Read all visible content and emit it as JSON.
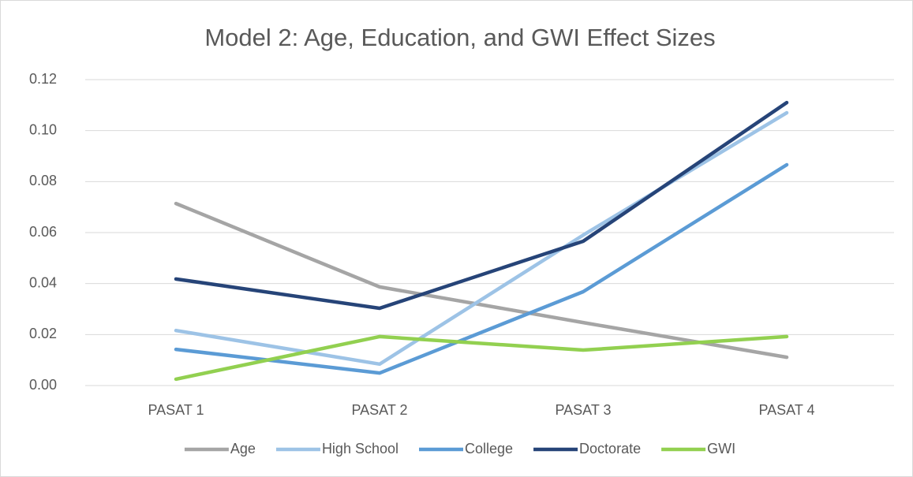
{
  "chart_data": {
    "type": "line",
    "title": "Model 2: Age, Education, and GWI Effect Sizes",
    "categories": [
      "PASAT 1",
      "PASAT 2",
      "PASAT 3",
      "PASAT 4"
    ],
    "series": [
      {
        "name": "Age",
        "color": "#a5a5a5",
        "values": [
          0.0714,
          0.0387,
          0.0247,
          0.0111
        ]
      },
      {
        "name": "High School",
        "color": "#9dc3e6",
        "values": [
          0.0216,
          0.0084,
          0.059,
          0.107
        ]
      },
      {
        "name": "College",
        "color": "#5b9bd5",
        "values": [
          0.0142,
          0.0049,
          0.0368,
          0.0866
        ]
      },
      {
        "name": "Doctorate",
        "color": "#264478",
        "values": [
          0.0418,
          0.0303,
          0.0566,
          0.111
        ]
      },
      {
        "name": "GWI",
        "color": "#92d050",
        "values": [
          0.0025,
          0.0192,
          0.0139,
          0.0192
        ]
      }
    ],
    "ylim": [
      0,
      0.12
    ],
    "yticks": [
      {
        "value": 0,
        "label": "0.00"
      },
      {
        "value": 0.02,
        "label": "0.02"
      },
      {
        "value": 0.04,
        "label": "0.04"
      },
      {
        "value": 0.06,
        "label": "0.06"
      },
      {
        "value": 0.08,
        "label": "0.08"
      },
      {
        "value": 0.1,
        "label": "0.10"
      },
      {
        "value": 0.12,
        "label": "0.12"
      }
    ],
    "grid": true,
    "legend": "bottom"
  }
}
